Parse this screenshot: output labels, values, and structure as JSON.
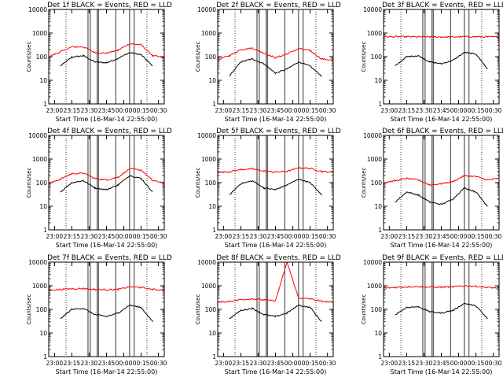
{
  "figure": {
    "xlabel": "Start Time (16-Mar-14 22:55:00)",
    "ylabel": "Counts/sec",
    "x_ticks": [
      "23:00",
      "23:15",
      "23:30",
      "23:45",
      "00:00",
      "00:15",
      "00:30"
    ],
    "y_ticks": [
      "1",
      "10",
      "100",
      "1000",
      "10000"
    ],
    "colors": {
      "events": "#000000",
      "lld": "#ff0000",
      "axes": "#000000",
      "background": "#ffffff"
    }
  },
  "chart_data": [
    {
      "type": "line",
      "title": "Det 1f BLACK = Events, RED = LLD",
      "xlabel": "Start Time (16-Mar-14 22:55:00)",
      "ylabel": "Counts/sec",
      "xlim": [
        "22:55",
        "00:35"
      ],
      "ylim": [
        1,
        10000
      ],
      "yscale": "log",
      "x": [
        "22:55",
        "23:05",
        "23:15",
        "23:25",
        "23:35",
        "23:45",
        "23:55",
        "00:05",
        "00:15",
        "00:25",
        "00:35"
      ],
      "series": [
        {
          "name": "Events",
          "values": [
            null,
            40,
            95,
            110,
            60,
            55,
            85,
            150,
            120,
            40,
            null
          ]
        },
        {
          "name": "LLD",
          "values": [
            100,
            160,
            260,
            260,
            150,
            140,
            190,
            350,
            320,
            110,
            90
          ]
        }
      ]
    },
    {
      "type": "line",
      "title": "Det 2f BLACK = Events, RED = LLD",
      "xlabel": "Start Time (16-Mar-14 22:55:00)",
      "ylabel": "Counts/sec",
      "xlim": [
        "22:55",
        "00:35"
      ],
      "ylim": [
        1,
        10000
      ],
      "yscale": "log",
      "x": [
        "22:55",
        "23:05",
        "23:15",
        "23:25",
        "23:35",
        "23:45",
        "23:55",
        "00:05",
        "00:15",
        "00:25",
        "00:35"
      ],
      "series": [
        {
          "name": "Events",
          "values": [
            null,
            15,
            60,
            80,
            50,
            20,
            30,
            60,
            40,
            15,
            null
          ]
        },
        {
          "name": "LLD",
          "values": [
            75,
            110,
            200,
            230,
            140,
            90,
            130,
            220,
            180,
            80,
            70
          ]
        }
      ]
    },
    {
      "type": "line",
      "title": "Det 3f BLACK = Events, RED = LLD",
      "xlabel": "Start Time (16-Mar-14 22:55:00)",
      "ylabel": "Counts/sec",
      "xlim": [
        "22:55",
        "00:35"
      ],
      "ylim": [
        1,
        10000
      ],
      "yscale": "log",
      "x": [
        "22:55",
        "23:05",
        "23:15",
        "23:25",
        "23:35",
        "23:45",
        "23:55",
        "00:05",
        "00:15",
        "00:25",
        "00:35"
      ],
      "series": [
        {
          "name": "Events",
          "values": [
            null,
            40,
            100,
            110,
            60,
            50,
            70,
            150,
            130,
            30,
            null
          ]
        },
        {
          "name": "LLD",
          "values": [
            700,
            700,
            700,
            690,
            690,
            680,
            680,
            700,
            700,
            690,
            690
          ]
        }
      ]
    },
    {
      "type": "line",
      "title": "Det 4f BLACK = Events, RED = LLD",
      "xlabel": "Start Time (16-Mar-14 22:55:00)",
      "ylabel": "Counts/sec",
      "xlim": [
        "22:55",
        "00:35"
      ],
      "ylim": [
        1,
        10000
      ],
      "yscale": "log",
      "x": [
        "22:55",
        "23:05",
        "23:15",
        "23:25",
        "23:35",
        "23:45",
        "23:55",
        "00:05",
        "00:15",
        "00:25",
        "00:35"
      ],
      "series": [
        {
          "name": "Events",
          "values": [
            null,
            40,
            100,
            120,
            60,
            50,
            80,
            200,
            150,
            40,
            null
          ]
        },
        {
          "name": "LLD",
          "values": [
            90,
            140,
            240,
            250,
            150,
            130,
            170,
            380,
            340,
            120,
            100
          ]
        }
      ]
    },
    {
      "type": "line",
      "title": "Det 5f BLACK = Events, RED = LLD",
      "xlabel": "Start Time (16-Mar-14 22:55:00)",
      "ylabel": "Counts/sec",
      "xlim": [
        "22:55",
        "00:35"
      ],
      "ylim": [
        1,
        10000
      ],
      "yscale": "log",
      "x": [
        "22:55",
        "23:05",
        "23:15",
        "23:25",
        "23:35",
        "23:45",
        "23:55",
        "00:05",
        "00:15",
        "00:25",
        "00:35"
      ],
      "series": [
        {
          "name": "Events",
          "values": [
            null,
            30,
            90,
            120,
            60,
            50,
            80,
            140,
            100,
            30,
            null
          ]
        },
        {
          "name": "LLD",
          "values": [
            270,
            290,
            360,
            380,
            310,
            280,
            300,
            420,
            400,
            300,
            270
          ]
        }
      ]
    },
    {
      "type": "line",
      "title": "Det 6f BLACK = Events, RED = LLD",
      "xlabel": "Start Time (16-Mar-14 22:55:00)",
      "ylabel": "Counts/sec",
      "xlim": [
        "22:55",
        "00:35"
      ],
      "ylim": [
        1,
        10000
      ],
      "yscale": "log",
      "x": [
        "22:55",
        "23:05",
        "23:15",
        "23:25",
        "23:35",
        "23:45",
        "23:55",
        "00:05",
        "00:15",
        "00:25",
        "00:35"
      ],
      "series": [
        {
          "name": "Events",
          "values": [
            null,
            15,
            40,
            30,
            15,
            12,
            20,
            60,
            40,
            10,
            null
          ]
        },
        {
          "name": "LLD",
          "values": [
            100,
            120,
            150,
            130,
            80,
            90,
            110,
            200,
            180,
            130,
            150
          ]
        }
      ]
    },
    {
      "type": "line",
      "title": "Det 7f BLACK = Events, RED = LLD",
      "xlabel": "Start Time (16-Mar-14 22:55:00)",
      "ylabel": "Counts/sec",
      "xlim": [
        "22:55",
        "00:35"
      ],
      "ylim": [
        1,
        10000
      ],
      "yscale": "log",
      "x": [
        "22:55",
        "23:05",
        "23:15",
        "23:25",
        "23:35",
        "23:45",
        "23:55",
        "00:05",
        "00:15",
        "00:25",
        "00:35"
      ],
      "series": [
        {
          "name": "Events",
          "values": [
            null,
            40,
            100,
            110,
            60,
            50,
            70,
            150,
            120,
            30,
            null
          ]
        },
        {
          "name": "LLD",
          "values": [
            650,
            700,
            750,
            760,
            700,
            680,
            700,
            900,
            850,
            700,
            650
          ]
        }
      ]
    },
    {
      "type": "line",
      "title": "Det 8f BLACK = Events, RED = LLD",
      "xlabel": "Start Time (16-Mar-14 22:55:00)",
      "ylabel": "Counts/sec",
      "xlim": [
        "22:55",
        "00:35"
      ],
      "ylim": [
        1,
        10000
      ],
      "yscale": "log",
      "x": [
        "22:55",
        "23:05",
        "23:15",
        "23:25",
        "23:35",
        "23:45",
        "23:55",
        "00:05",
        "00:15",
        "00:25",
        "00:35"
      ],
      "series": [
        {
          "name": "Events",
          "values": [
            null,
            40,
            90,
            110,
            60,
            50,
            70,
            150,
            120,
            30,
            null
          ]
        },
        {
          "name": "LLD",
          "values": [
            200,
            220,
            260,
            280,
            250,
            230,
            10000,
            300,
            280,
            220,
            200
          ]
        }
      ]
    },
    {
      "type": "line",
      "title": "Det 9f BLACK = Events, RED = LLD",
      "xlabel": "Start Time (16-Mar-14 22:55:00)",
      "ylabel": "Counts/sec",
      "xlim": [
        "22:55",
        "00:35"
      ],
      "ylim": [
        1,
        10000
      ],
      "yscale": "log",
      "x": [
        "22:55",
        "23:05",
        "23:15",
        "23:25",
        "23:35",
        "23:45",
        "23:55",
        "00:05",
        "00:15",
        "00:25",
        "00:35"
      ],
      "series": [
        {
          "name": "Events",
          "values": [
            null,
            60,
            120,
            130,
            80,
            70,
            90,
            180,
            140,
            40,
            null
          ]
        },
        {
          "name": "LLD",
          "values": [
            800,
            850,
            900,
            920,
            880,
            870,
            900,
            1000,
            950,
            850,
            800
          ]
        }
      ]
    }
  ]
}
